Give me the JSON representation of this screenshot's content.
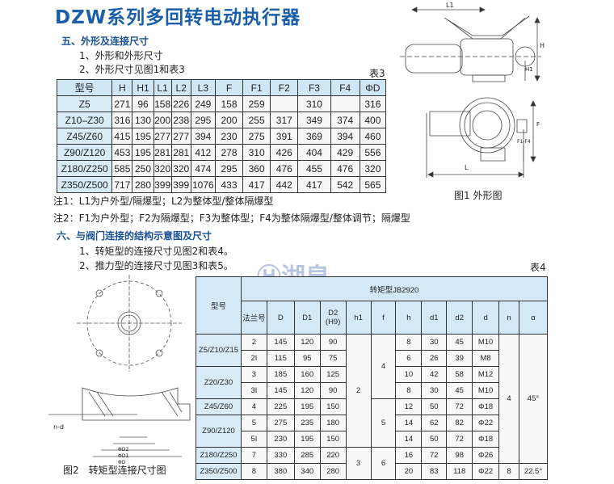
{
  "title": "DZW系列多回转电动执行器",
  "section5": {
    "heading": "五、外形及连接尺寸",
    "items": [
      "1、外形和外形尺寸",
      "2、外形尺寸见图1和表3"
    ],
    "table_label": "表3",
    "table": {
      "headers": [
        "型号",
        "H",
        "H1",
        "L1",
        "L2",
        "L3",
        "F",
        "F1",
        "F2",
        "F3",
        "F4",
        "ΦD"
      ],
      "rows": [
        [
          "Z5",
          "271",
          "96",
          "158",
          "226",
          "249",
          "158",
          "259",
          "",
          "310",
          "",
          "316"
        ],
        [
          "Z10–Z30",
          "316",
          "130",
          "200",
          "238",
          "295",
          "200",
          "255",
          "317",
          "349",
          "374",
          "400"
        ],
        [
          "Z45/Z60",
          "415",
          "195",
          "277",
          "277",
          "394",
          "230",
          "275",
          "391",
          "369",
          "394",
          "460"
        ],
        [
          "Z90/Z120",
          "453",
          "195",
          "281",
          "281",
          "412",
          "278",
          "310",
          "426",
          "404",
          "429",
          "556"
        ],
        [
          "Z180/Z250",
          "585",
          "250",
          "320",
          "320",
          "474",
          "295",
          "360",
          "476",
          "455",
          "476",
          "320"
        ],
        [
          "Z350/Z500",
          "717",
          "280",
          "399",
          "399",
          "1076",
          "433",
          "417",
          "442",
          "417",
          "542",
          "565"
        ]
      ]
    },
    "notes": [
      "注1：L1为户外型/隔爆型；L2为整体型/整体隔爆型",
      "注2：F1为户外型；F2为隔爆型；F3为整体型；F4为整体隔爆型/整体调节；隔爆型"
    ],
    "figure1": {
      "caption": "图1 外形图",
      "labels": {
        "l1": "L1",
        "h": "H",
        "h1": "H1",
        "f": "F",
        "f1": "F1-F4",
        "l": "L"
      }
    }
  },
  "section6": {
    "heading": "六、与阀门连接的结构示意图及尺寸",
    "items": [
      "1、转矩型的连接尺寸见图2和表4。",
      "2、推力型的连接尺寸见图3和表5。"
    ],
    "table_label": "表4",
    "figure2": {
      "caption": "图2　转矩型连接尺寸图",
      "labels": {
        "nd": "n-d",
        "d": "ΦD",
        "d1": "ΦD1",
        "d2": "ΦD2"
      }
    },
    "table": {
      "model_header": "型号",
      "group_header": "转矩型JB2920",
      "headers": [
        "法兰号",
        "D",
        "D1",
        "D2 (H9)",
        "h1",
        "f",
        "h",
        "d1",
        "d2",
        "d",
        "n",
        "α"
      ],
      "groups": [
        {
          "model": "Z5/Z10/Z15",
          "rows": [
            [
              "2",
              "145",
              "120",
              "90",
              "8",
              "30",
              "45",
              "M10"
            ],
            [
              "2I",
              "115",
              "95",
              "75",
              "6",
              "26",
              "39",
              "M8"
            ]
          ]
        },
        {
          "model": "Z20/Z30",
          "rows": [
            [
              "3",
              "185",
              "160",
              "125",
              "10",
              "42",
              "58",
              "M12"
            ],
            [
              "3I",
              "145",
              "120",
              "90",
              "8",
              "30",
              "45",
              "M10"
            ]
          ]
        },
        {
          "model": "Z45/Z60",
          "rows": [
            [
              "4",
              "225",
              "195",
              "150",
              "12",
              "50",
              "72",
              "Φ18"
            ]
          ]
        },
        {
          "model": "Z90/Z120",
          "rows": [
            [
              "5",
              "275",
              "235",
              "180",
              "14",
              "62",
              "82",
              "Φ22"
            ],
            [
              "5I",
              "230",
              "195",
              "150",
              "14",
              "50",
              "72",
              "Φ18"
            ]
          ]
        },
        {
          "model": "Z180/Z250",
          "rows": [
            [
              "7",
              "330",
              "285",
              "220",
              "16",
              "72",
              "98",
              "Φ26"
            ]
          ]
        },
        {
          "model": "Z350/Z500",
          "rows": [
            [
              "8",
              "380",
              "340",
              "280",
              "20",
              "83",
              "118",
              "Φ22"
            ]
          ]
        }
      ],
      "h1_merged": [
        "2",
        "3"
      ],
      "f_merged": [
        "4",
        "5",
        "6"
      ],
      "n_merged": [
        "4",
        "8"
      ],
      "alpha_merged": [
        "45°",
        "22.5°"
      ]
    }
  },
  "watermark": "湖泉",
  "colors": {
    "title": "#1a5fa8",
    "header_bg": "#cfe6f5",
    "heading": "#1a4f96"
  }
}
